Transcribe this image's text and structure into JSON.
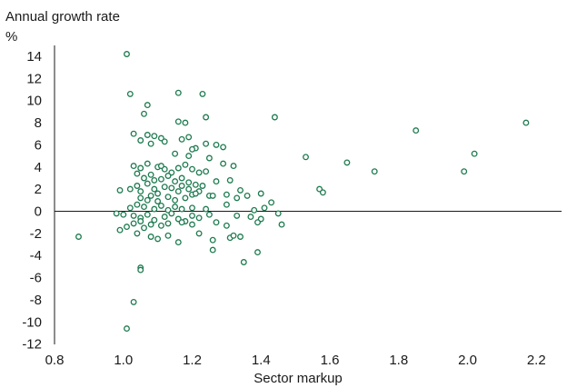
{
  "chart_data": {
    "type": "scatter",
    "title": "",
    "ylabel": "Annual growth rate",
    "yunit": "%",
    "xlabel": "Sector markup",
    "xlim": [
      0.8,
      2.3
    ],
    "ylim": [
      -12,
      15
    ],
    "xticks": [
      "0.8",
      "1.0",
      "1.2",
      "1.4",
      "1.6",
      "1.8",
      "2.0",
      "2.2"
    ],
    "yticks": [
      "14",
      "12",
      "10",
      "8",
      "6",
      "4",
      "2",
      "0",
      "-2",
      "-4",
      "-6",
      "-8",
      "-10",
      "-12"
    ],
    "grid": false,
    "marker_color": "#1e7b4f",
    "series": [
      {
        "points": [
          [
            1.01,
            14.2
          ],
          [
            1.02,
            10.6
          ],
          [
            1.16,
            10.7
          ],
          [
            1.23,
            10.6
          ],
          [
            1.07,
            9.6
          ],
          [
            1.06,
            8.8
          ],
          [
            1.16,
            8.1
          ],
          [
            1.18,
            8.0
          ],
          [
            1.24,
            8.5
          ],
          [
            1.44,
            8.5
          ],
          [
            2.17,
            8.0
          ],
          [
            1.85,
            7.3
          ],
          [
            1.03,
            7.0
          ],
          [
            1.07,
            6.9
          ],
          [
            1.09,
            6.8
          ],
          [
            1.11,
            6.6
          ],
          [
            1.12,
            6.3
          ],
          [
            1.17,
            6.5
          ],
          [
            1.19,
            6.7
          ],
          [
            1.24,
            6.1
          ],
          [
            1.27,
            6.0
          ],
          [
            1.29,
            5.8
          ],
          [
            1.05,
            6.4
          ],
          [
            1.08,
            6.1
          ],
          [
            1.21,
            5.7
          ],
          [
            1.2,
            5.6
          ],
          [
            1.15,
            5.2
          ],
          [
            1.19,
            5.0
          ],
          [
            1.25,
            4.8
          ],
          [
            1.53,
            4.9
          ],
          [
            1.65,
            4.4
          ],
          [
            2.02,
            5.2
          ],
          [
            1.73,
            3.6
          ],
          [
            1.99,
            3.6
          ],
          [
            1.32,
            4.1
          ],
          [
            1.29,
            4.3
          ],
          [
            1.03,
            4.1
          ],
          [
            1.05,
            3.9
          ],
          [
            1.07,
            4.3
          ],
          [
            1.1,
            4.0
          ],
          [
            1.12,
            3.8
          ],
          [
            1.14,
            3.5
          ],
          [
            1.16,
            3.9
          ],
          [
            1.18,
            4.2
          ],
          [
            1.2,
            3.8
          ],
          [
            1.22,
            3.5
          ],
          [
            1.24,
            3.6
          ],
          [
            1.11,
            4.1
          ],
          [
            1.04,
            3.4
          ],
          [
            1.06,
            3.0
          ],
          [
            1.08,
            3.3
          ],
          [
            1.09,
            2.8
          ],
          [
            1.11,
            2.9
          ],
          [
            1.13,
            3.2
          ],
          [
            1.15,
            2.7
          ],
          [
            1.17,
            3.0
          ],
          [
            1.19,
            2.6
          ],
          [
            1.21,
            2.4
          ],
          [
            1.23,
            2.3
          ],
          [
            1.27,
            2.7
          ],
          [
            1.31,
            2.8
          ],
          [
            1.34,
            1.9
          ],
          [
            1.02,
            2.0
          ],
          [
            1.04,
            2.3
          ],
          [
            1.05,
            1.8
          ],
          [
            1.07,
            2.5
          ],
          [
            1.09,
            2.0
          ],
          [
            1.1,
            1.6
          ],
          [
            1.12,
            2.2
          ],
          [
            1.14,
            2.1
          ],
          [
            1.16,
            1.8
          ],
          [
            1.17,
            2.3
          ],
          [
            1.19,
            2.0
          ],
          [
            1.2,
            1.5
          ],
          [
            1.22,
            1.8
          ],
          [
            0.99,
            1.9
          ],
          [
            1.05,
            1.2
          ],
          [
            1.07,
            1.0
          ],
          [
            1.08,
            1.4
          ],
          [
            1.1,
            0.9
          ],
          [
            1.13,
            1.3
          ],
          [
            1.15,
            1.0
          ],
          [
            1.18,
            1.2
          ],
          [
            1.21,
            1.6
          ],
          [
            1.25,
            1.4
          ],
          [
            1.26,
            1.4
          ],
          [
            1.3,
            1.5
          ],
          [
            1.33,
            1.2
          ],
          [
            1.36,
            1.4
          ],
          [
            1.4,
            1.6
          ],
          [
            1.57,
            2.0
          ],
          [
            1.58,
            1.7
          ],
          [
            1.02,
            0.3
          ],
          [
            1.04,
            0.6
          ],
          [
            1.06,
            0.4
          ],
          [
            1.09,
            0.2
          ],
          [
            1.11,
            0.5
          ],
          [
            1.13,
            0.1
          ],
          [
            1.15,
            0.4
          ],
          [
            1.17,
            0.2
          ],
          [
            1.2,
            0.3
          ],
          [
            1.24,
            0.2
          ],
          [
            1.3,
            0.6
          ],
          [
            1.38,
            0.1
          ],
          [
            1.41,
            0.3
          ],
          [
            1.43,
            0.8
          ],
          [
            0.98,
            -0.2
          ],
          [
            1.0,
            -0.3
          ],
          [
            1.03,
            -0.4
          ],
          [
            1.05,
            -0.6
          ],
          [
            1.07,
            -0.3
          ],
          [
            1.09,
            -0.8
          ],
          [
            1.12,
            -0.5
          ],
          [
            1.14,
            -0.2
          ],
          [
            1.16,
            -0.7
          ],
          [
            1.18,
            -0.9
          ],
          [
            1.2,
            -0.4
          ],
          [
            1.22,
            -0.6
          ],
          [
            1.25,
            -0.3
          ],
          [
            1.33,
            -0.4
          ],
          [
            1.37,
            -0.5
          ],
          [
            1.4,
            -0.7
          ],
          [
            1.45,
            -0.2
          ],
          [
            1.01,
            -1.4
          ],
          [
            1.03,
            -1.1
          ],
          [
            1.05,
            -0.9
          ],
          [
            1.06,
            -1.5
          ],
          [
            1.08,
            -1.2
          ],
          [
            1.11,
            -1.3
          ],
          [
            1.13,
            -1.1
          ],
          [
            1.17,
            -1.0
          ],
          [
            1.2,
            -1.2
          ],
          [
            1.27,
            -1.0
          ],
          [
            1.3,
            -1.3
          ],
          [
            1.39,
            -1.0
          ],
          [
            1.46,
            -1.2
          ],
          [
            0.87,
            -2.3
          ],
          [
            0.99,
            -1.7
          ],
          [
            1.04,
            -2.0
          ],
          [
            1.08,
            -2.3
          ],
          [
            1.1,
            -2.5
          ],
          [
            1.13,
            -2.2
          ],
          [
            1.16,
            -2.8
          ],
          [
            1.22,
            -2.0
          ],
          [
            1.26,
            -2.6
          ],
          [
            1.31,
            -2.4
          ],
          [
            1.32,
            -2.2
          ],
          [
            1.34,
            -2.3
          ],
          [
            1.26,
            -3.5
          ],
          [
            1.39,
            -3.7
          ],
          [
            1.35,
            -4.6
          ],
          [
            1.05,
            -5.1
          ],
          [
            1.05,
            -5.3
          ],
          [
            1.03,
            -8.2
          ],
          [
            1.01,
            -10.6
          ]
        ]
      }
    ]
  }
}
